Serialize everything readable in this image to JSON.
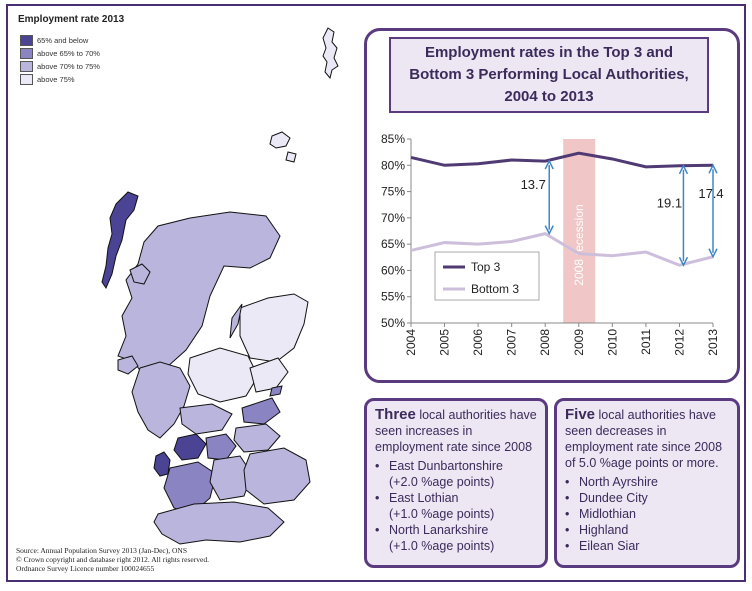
{
  "map": {
    "title": "Employment rate 2013",
    "legend": [
      {
        "label": "65% and below",
        "color": "#4b4393"
      },
      {
        "label": "above 65% to 70%",
        "color": "#8a84c2"
      },
      {
        "label": "above 70% to 75%",
        "color": "#b9b5dc"
      },
      {
        "label": "above 75%",
        "color": "#ebe9f6"
      }
    ],
    "source_lines": [
      "Source: Annual Population Survey 2013 (Jan-Dec), ONS",
      "© Crown copyright and database right 2012. All rights reserved.",
      "Ordnance Survey Licence number 100024655"
    ]
  },
  "chart": {
    "title": "Employment rates in the Top 3 and Bottom 3 Performing Local Authorities, 2004 to 2013"
  },
  "chart_data": {
    "type": "line",
    "x": [
      "2004",
      "2005",
      "2006",
      "2007",
      "2008",
      "2009",
      "2010",
      "2011",
      "2012",
      "2013"
    ],
    "series": [
      {
        "name": "Top 3",
        "values": [
          81.5,
          80.0,
          80.3,
          81.0,
          80.8,
          82.3,
          81.2,
          79.7,
          79.9,
          80.0
        ],
        "color": "#4f3a74"
      },
      {
        "name": "Bottom 3",
        "values": [
          63.8,
          65.3,
          65.0,
          65.5,
          67.0,
          63.2,
          62.8,
          63.5,
          61.0,
          62.6
        ],
        "color": "#cdbfdc"
      }
    ],
    "ylim": [
      50,
      85
    ],
    "yticks": [
      "50%",
      "55%",
      "60%",
      "65%",
      "70%",
      "75%",
      "80%",
      "85%"
    ],
    "recession_label": "2008 recession",
    "recession_color": "#f1c6c6",
    "gap_labels": [
      "13.7",
      "19.1",
      "17.4"
    ],
    "legend_placement": "bottom-left",
    "grid": false
  },
  "boxes": {
    "left": {
      "lead": "Three",
      "text": " local authorities have seen increases in employment rate since 2008",
      "items": [
        {
          "name": "East Dunbartonshire",
          "detail": "(+2.0 %age points)"
        },
        {
          "name": "East Lothian",
          "detail": "(+1.0 %age points)"
        },
        {
          "name": "North Lanarkshire",
          "detail": "(+1.0 %age points)"
        }
      ]
    },
    "right": {
      "lead": "Five",
      "text": " local authorities have seen decreases in employment rate since 2008 of 5.0 %age points or more.",
      "items": [
        "North Ayrshire",
        "Dundee City",
        "Midlothian",
        "Highland",
        "Eilean Siar"
      ]
    }
  }
}
